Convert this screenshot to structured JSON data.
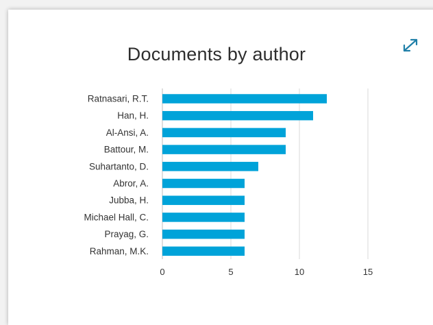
{
  "title": "Documents by author",
  "icons": {
    "expand": "expand-icon"
  },
  "colors": {
    "bar": "#00a3d9",
    "grid": "#d9d9d9",
    "axis": "#bdbdbd",
    "text": "#333333",
    "icon": "#1f7fa8"
  },
  "chart_data": {
    "type": "bar",
    "orientation": "horizontal",
    "categories": [
      "Ratnasari, R.T.",
      "Han, H.",
      "Al-Ansi, A.",
      "Battour, M.",
      "Suhartanto, D.",
      "Abror, A.",
      "Jubba, H.",
      "Michael Hall, C.",
      "Prayag, G.",
      "Rahman, M.K."
    ],
    "values": [
      12,
      11,
      9,
      9,
      7,
      6,
      6,
      6,
      6,
      6
    ],
    "xlim": [
      0,
      15
    ],
    "xticks": [
      0,
      5,
      10,
      15
    ],
    "grid": true
  }
}
